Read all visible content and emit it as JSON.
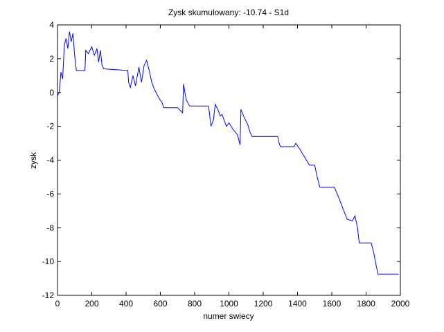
{
  "chart_data": {
    "type": "line",
    "title": "Zysk skumulowany: -10.74 - S1d",
    "xlabel": "numer swiecy",
    "ylabel": "zysk",
    "x": [
      0,
      10,
      20,
      30,
      40,
      50,
      60,
      70,
      80,
      90,
      100,
      110,
      160,
      165,
      180,
      200,
      215,
      230,
      240,
      250,
      260,
      270,
      410,
      415,
      425,
      440,
      455,
      475,
      490,
      505,
      520,
      535,
      550,
      565,
      590,
      610,
      620,
      700,
      710,
      730,
      735,
      750,
      770,
      880,
      885,
      895,
      910,
      920,
      935,
      950,
      960,
      985,
      1000,
      1025,
      1050,
      1065,
      1070,
      1090,
      1110,
      1125,
      1135,
      1285,
      1290,
      1300,
      1380,
      1390,
      1410,
      1440,
      1470,
      1500,
      1515,
      1530,
      1615,
      1640,
      1670,
      1690,
      1720,
      1735,
      1750,
      1760,
      1830,
      1845,
      1860,
      1870,
      1990
    ],
    "series": [
      {
        "name": "zysk",
        "color": "#0000ff",
        "values": [
          -0.2,
          0,
          1.2,
          0.8,
          2.8,
          3.2,
          2.6,
          3.6,
          3.0,
          3.5,
          2.2,
          1.3,
          1.3,
          2.5,
          2.3,
          2.7,
          2.2,
          2.6,
          1.8,
          2.5,
          1.6,
          1.4,
          1.3,
          0.6,
          0.3,
          1.0,
          0.4,
          1.5,
          0.6,
          1.6,
          1.9,
          1.3,
          0.6,
          0.2,
          -0.3,
          -0.6,
          -0.9,
          -0.9,
          -1.0,
          -1.2,
          0.5,
          -0.4,
          -0.8,
          -0.8,
          -1.1,
          -2.0,
          -1.6,
          -0.7,
          -1.0,
          -1.4,
          -1.3,
          -2.0,
          -1.8,
          -2.2,
          -2.5,
          -3.1,
          -1.0,
          -1.5,
          -1.9,
          -2.4,
          -2.6,
          -2.6,
          -2.9,
          -3.2,
          -3.2,
          -3.0,
          -3.3,
          -3.8,
          -4.3,
          -4.3,
          -5.0,
          -5.6,
          -5.6,
          -6.2,
          -7.0,
          -7.5,
          -7.6,
          -7.3,
          -8.0,
          -8.9,
          -8.9,
          -9.5,
          -10.3,
          -10.74,
          -10.74
        ]
      }
    ],
    "xlim": [
      0,
      2000
    ],
    "xticks": [
      0,
      200,
      400,
      600,
      800,
      1000,
      1200,
      1400,
      1600,
      1800,
      2000
    ],
    "ylim": [
      -12,
      4
    ],
    "yticks": [
      -12,
      -10,
      -8,
      -6,
      -4,
      -2,
      0,
      2,
      4
    ],
    "grid": false
  }
}
